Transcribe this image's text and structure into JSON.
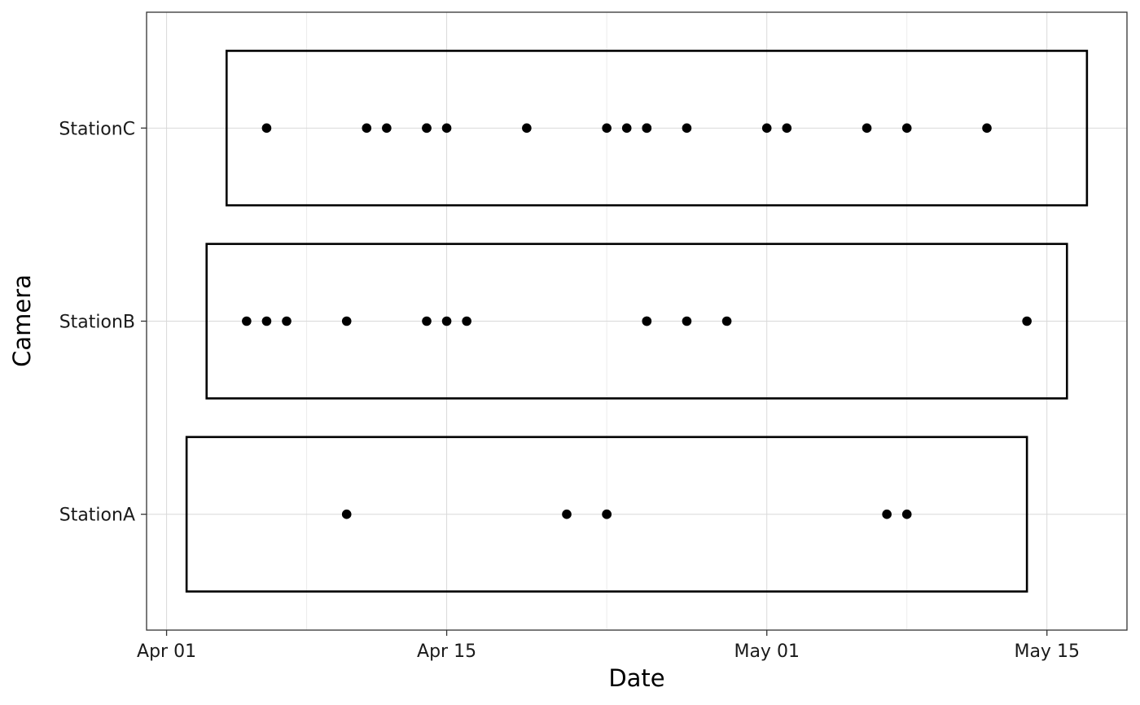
{
  "chart_data": {
    "type": "scatter",
    "title": "",
    "xlabel": "Date",
    "ylabel": "Camera",
    "x_axis_kind": "date",
    "xlim": [
      "2023-03-31",
      "2023-05-19"
    ],
    "x_ticks": [
      {
        "date": "2023-04-01",
        "label": "Apr 01"
      },
      {
        "date": "2023-04-15",
        "label": "Apr 15"
      },
      {
        "date": "2023-05-01",
        "label": "May 01"
      },
      {
        "date": "2023-05-15",
        "label": "May 15"
      }
    ],
    "x_minor_ticks": [
      "2023-04-08",
      "2023-04-23",
      "2023-05-08"
    ],
    "categories": [
      "StationA",
      "StationB",
      "StationC"
    ],
    "grid": true,
    "legend": "none",
    "colors": {
      "points": "#000000",
      "rect_stroke": "#000000",
      "grid": "#d9d9d9",
      "panel_border": "#333333"
    },
    "deployments": [
      {
        "station": "StationA",
        "start": "2023-04-02",
        "end": "2023-05-14"
      },
      {
        "station": "StationB",
        "start": "2023-04-03",
        "end": "2023-05-16"
      },
      {
        "station": "StationC",
        "start": "2023-04-04",
        "end": "2023-05-17"
      }
    ],
    "series": [
      {
        "station": "StationA",
        "dates": [
          "2023-04-10",
          "2023-04-21",
          "2023-04-23",
          "2023-04-23",
          "2023-05-07",
          "2023-05-08"
        ]
      },
      {
        "station": "StationB",
        "dates": [
          "2023-04-05",
          "2023-04-06",
          "2023-04-07",
          "2023-04-10",
          "2023-04-14",
          "2023-04-15",
          "2023-04-16",
          "2023-04-25",
          "2023-04-25",
          "2023-04-27",
          "2023-04-29",
          "2023-05-14"
        ]
      },
      {
        "station": "StationC",
        "dates": [
          "2023-04-06",
          "2023-04-11",
          "2023-04-12",
          "2023-04-14",
          "2023-04-14",
          "2023-04-15",
          "2023-04-19",
          "2023-04-23",
          "2023-04-24",
          "2023-04-25",
          "2023-04-25",
          "2023-04-27",
          "2023-05-01",
          "2023-05-02",
          "2023-05-06",
          "2023-05-08",
          "2023-05-12"
        ]
      }
    ]
  }
}
